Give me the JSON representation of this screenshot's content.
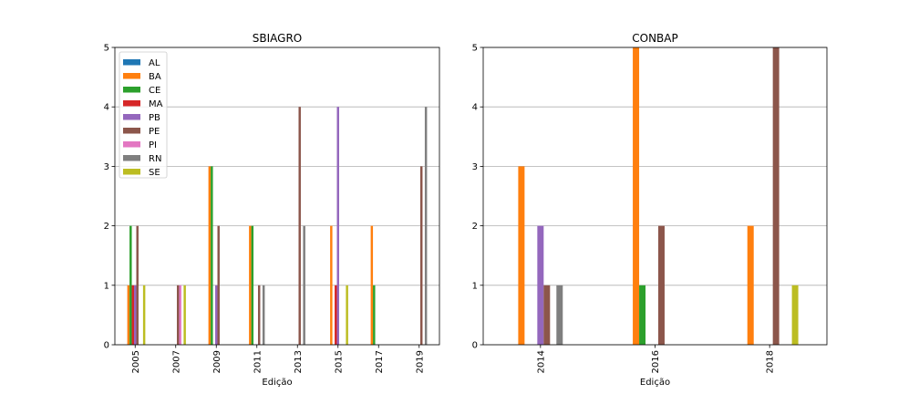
{
  "colors": {
    "AL": "#1f77b4",
    "BA": "#ff7f0e",
    "CE": "#2ca02c",
    "MA": "#d62728",
    "PB": "#9467bd",
    "PE": "#8c564b",
    "PI": "#e377c2",
    "RN": "#7f7f7f",
    "SE": "#bcbd22"
  },
  "chart_data": [
    {
      "type": "bar",
      "title": "SBIAGRO",
      "xlabel": "Edição",
      "ylabel": "",
      "ylim": [
        0,
        5
      ],
      "yticks": [
        0,
        1,
        2,
        3,
        4,
        5
      ],
      "grid": "y",
      "legend": "upper-left",
      "categories": [
        "2005",
        "2007",
        "2009",
        "2011",
        "2013",
        "2015",
        "2017",
        "2019"
      ],
      "series": [
        {
          "name": "AL",
          "values": [
            0,
            0,
            0,
            0,
            0,
            0,
            0,
            0
          ]
        },
        {
          "name": "BA",
          "values": [
            1,
            0,
            3,
            2,
            0,
            2,
            2,
            0
          ]
        },
        {
          "name": "CE",
          "values": [
            2,
            0,
            3,
            2,
            0,
            0,
            1,
            0
          ]
        },
        {
          "name": "MA",
          "values": [
            1,
            0,
            0,
            0,
            0,
            1,
            0,
            0
          ]
        },
        {
          "name": "PB",
          "values": [
            1,
            0,
            1,
            0,
            0,
            4,
            0,
            0
          ]
        },
        {
          "name": "PE",
          "values": [
            2,
            1,
            2,
            1,
            4,
            0,
            0,
            3
          ]
        },
        {
          "name": "PI",
          "values": [
            0,
            1,
            0,
            0,
            0,
            0,
            0,
            0
          ]
        },
        {
          "name": "RN",
          "values": [
            0,
            0,
            0,
            1,
            2,
            0,
            0,
            4
          ]
        },
        {
          "name": "SE",
          "values": [
            1,
            1,
            0,
            0,
            0,
            1,
            0,
            0
          ]
        }
      ]
    },
    {
      "type": "bar",
      "title": "CONBAP",
      "xlabel": "Edição",
      "ylabel": "",
      "ylim": [
        0,
        5
      ],
      "yticks": [
        0,
        1,
        2,
        3,
        4,
        5
      ],
      "grid": "y",
      "legend": "none",
      "categories": [
        "2014",
        "2016",
        "2018"
      ],
      "series": [
        {
          "name": "AL",
          "values": [
            0,
            0,
            0
          ]
        },
        {
          "name": "BA",
          "values": [
            3,
            5,
            2
          ]
        },
        {
          "name": "CE",
          "values": [
            0,
            1,
            0
          ]
        },
        {
          "name": "MA",
          "values": [
            0,
            0,
            0
          ]
        },
        {
          "name": "PB",
          "values": [
            2,
            0,
            0
          ]
        },
        {
          "name": "PE",
          "values": [
            1,
            2,
            5
          ]
        },
        {
          "name": "PI",
          "values": [
            0,
            0,
            0
          ]
        },
        {
          "name": "RN",
          "values": [
            1,
            0,
            0
          ]
        },
        {
          "name": "SE",
          "values": [
            0,
            0,
            1
          ]
        }
      ]
    }
  ]
}
